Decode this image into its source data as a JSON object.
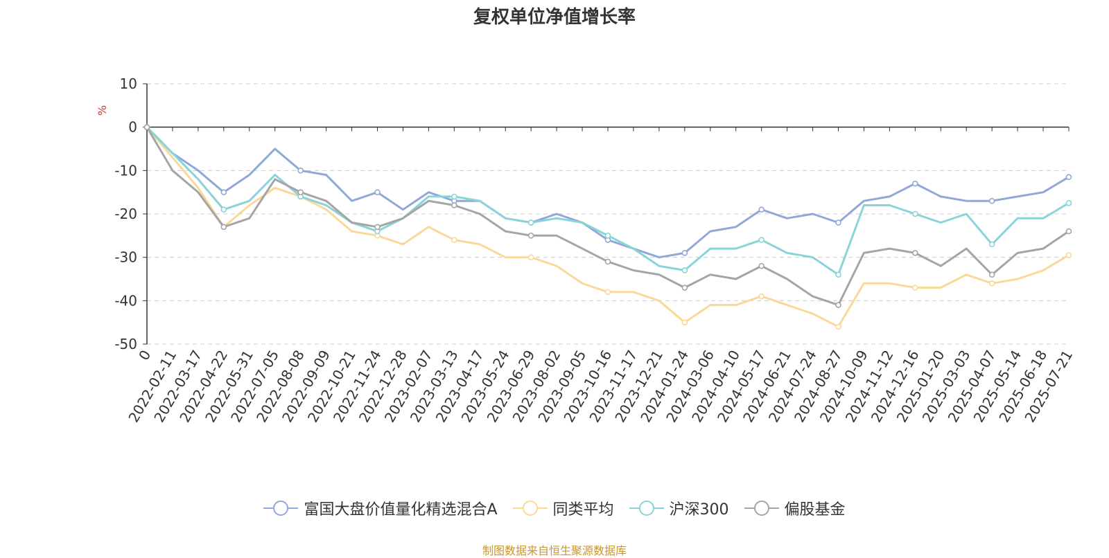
{
  "title": "复权单位净值增长率",
  "source_note": "制图数据来自恒生聚源数据库",
  "chart_data": {
    "type": "line",
    "title": "复权单位净值增长率",
    "ylabel": "%",
    "xlabel": "",
    "ylim": [
      -50,
      10
    ],
    "yticks": [
      10,
      0,
      -10,
      -20,
      -30,
      -40,
      -50
    ],
    "grid": true,
    "legend_position": "bottom",
    "categories": [
      "0",
      "2022-02-11",
      "2022-03-17",
      "2022-04-22",
      "2022-05-31",
      "2022-07-05",
      "2022-08-08",
      "2022-09-09",
      "2022-10-21",
      "2022-11-24",
      "2022-12-28",
      "2023-02-07",
      "2023-03-13",
      "2023-04-17",
      "2023-05-24",
      "2023-06-29",
      "2023-08-02",
      "2023-09-05",
      "2023-10-16",
      "2023-11-17",
      "2023-12-21",
      "2024-01-24",
      "2024-03-06",
      "2024-04-10",
      "2024-05-17",
      "2024-06-21",
      "2024-07-24",
      "2024-08-27",
      "2024-10-09",
      "2024-11-12",
      "2024-12-16",
      "2025-01-20",
      "2025-03-03",
      "2025-04-07",
      "2025-05-14",
      "2025-06-18",
      "2025-07-21"
    ],
    "series": [
      {
        "name": "富国大盘价值量化精选混合A",
        "color": "#8fa8d8",
        "values": [
          0,
          -6,
          -10,
          -15,
          -11,
          -5,
          -10,
          -11,
          -17,
          -15,
          -19,
          -15,
          -17,
          -17,
          -21,
          -22,
          -20,
          -22,
          -26,
          -28,
          -30,
          -29,
          -24,
          -23,
          -19,
          -21,
          -20,
          -22,
          -17,
          -16,
          -13,
          -16,
          -17,
          -17,
          -16,
          -15,
          -11.5
        ]
      },
      {
        "name": "同类平均",
        "color": "#fad898",
        "values": [
          0,
          -7,
          -14,
          -23,
          -18,
          -14,
          -16,
          -19,
          -24,
          -25,
          -27,
          -23,
          -26,
          -27,
          -30,
          -30,
          -32,
          -36,
          -38,
          -38,
          -40,
          -45,
          -41,
          -41,
          -39,
          -41,
          -43,
          -46,
          -36,
          -36,
          -37,
          -37,
          -34,
          -36,
          -35,
          -33,
          -29.5
        ]
      },
      {
        "name": "沪深300",
        "color": "#88d4d8",
        "values": [
          0,
          -6,
          -12,
          -19,
          -17,
          -11,
          -16,
          -18,
          -22,
          -24,
          -21,
          -16,
          -16,
          -17,
          -21,
          -22,
          -21,
          -22,
          -25,
          -28,
          -32,
          -33,
          -28,
          -28,
          -26,
          -29,
          -30,
          -34,
          -18,
          -18,
          -20,
          -22,
          -20,
          -27,
          -21,
          -21,
          -17.5
        ]
      },
      {
        "name": "偏股基金",
        "color": "#a5a5a5",
        "values": [
          0,
          -10,
          -15,
          -23,
          -21,
          -12,
          -15,
          -17,
          -22,
          -23,
          -21,
          -17,
          -18,
          -20,
          -24,
          -25,
          -25,
          -28,
          -31,
          -33,
          -34,
          -37,
          -34,
          -35,
          -32,
          -35,
          -39,
          -41,
          -29,
          -28,
          -29,
          -32,
          -28,
          -34,
          -29,
          -28,
          -24
        ]
      }
    ]
  }
}
